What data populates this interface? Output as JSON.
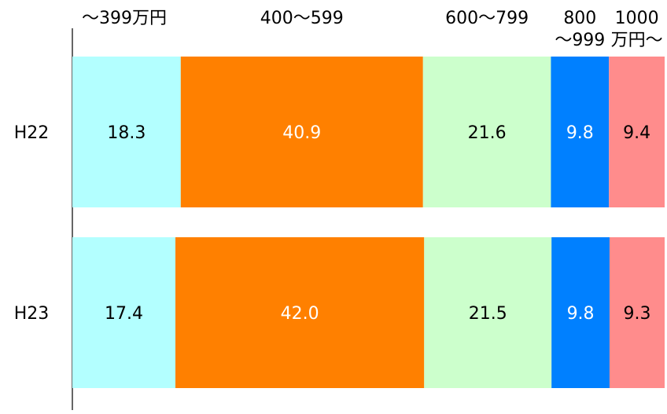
{
  "chart_data": {
    "type": "bar",
    "orientation": "horizontal",
    "stacked": true,
    "percent": true,
    "title": "",
    "xlabel": "",
    "ylabel": "",
    "rows": [
      "H22",
      "H23"
    ],
    "series": [
      {
        "name": "～399万円",
        "name_lines": [
          "～399万円"
        ],
        "color": "#B3FFFF",
        "label_color": "#000000",
        "values": [
          18.3,
          17.4
        ]
      },
      {
        "name": "400～599",
        "name_lines": [
          "400～599"
        ],
        "color": "#FF8000",
        "label_color": "#FFFFFF",
        "values": [
          40.9,
          42.0
        ]
      },
      {
        "name": "600～799",
        "name_lines": [
          "600～799"
        ],
        "color": "#CCFFCC",
        "label_color": "#000000",
        "values": [
          21.6,
          21.5
        ]
      },
      {
        "name": "800～999",
        "name_lines": [
          "800",
          "～999"
        ],
        "color": "#0080FF",
        "label_color": "#FFFFFF",
        "values": [
          9.8,
          9.8
        ]
      },
      {
        "name": "1000万円～",
        "name_lines": [
          "1000",
          "万円～"
        ],
        "color": "#FF8C8C",
        "label_color": "#000000",
        "values": [
          9.4,
          9.3
        ]
      }
    ],
    "value_labels": [
      [
        "18.3",
        "40.9",
        "21.6",
        "9.8",
        "9.4"
      ],
      [
        "17.4",
        "42.0",
        "21.5",
        "9.8",
        "9.3"
      ]
    ],
    "xlim": [
      0,
      100
    ],
    "grid": false,
    "legend": "top"
  }
}
